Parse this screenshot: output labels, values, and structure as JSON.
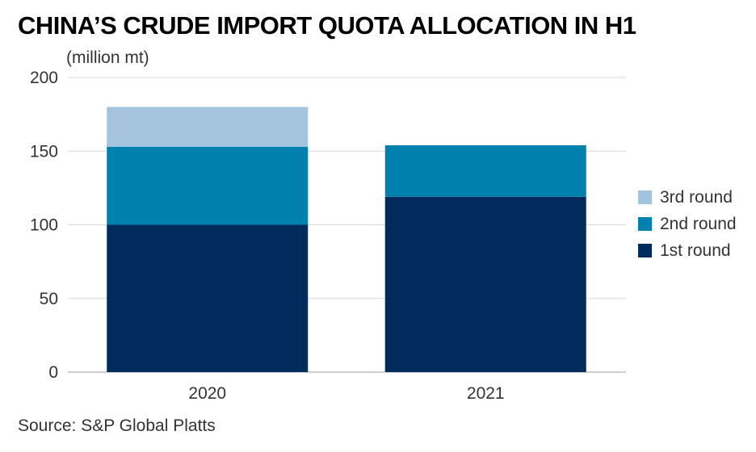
{
  "chart_data": {
    "type": "bar",
    "stacked": true,
    "title": "CHINA’S CRUDE IMPORT QUOTA ALLOCATION IN H1",
    "ylabel": "(million mt)",
    "xlabel": "",
    "categories": [
      "2020",
      "2021"
    ],
    "series": [
      {
        "name": "1st round",
        "values": [
          100,
          119
        ],
        "color": "#002b5c"
      },
      {
        "name": "2nd round",
        "values": [
          53,
          35
        ],
        "color": "#0080ad"
      },
      {
        "name": "3rd round",
        "values": [
          27,
          0
        ],
        "color": "#a3c4dc"
      }
    ],
    "ylim": [
      0,
      200
    ],
    "yticks": [
      0,
      50,
      100,
      150,
      200
    ],
    "grid": true,
    "legend_position": "right",
    "source": "Source: S&P Global Platts"
  },
  "colors": {
    "gridline": "#d9d9d9",
    "axis": "#bfbfbf"
  }
}
